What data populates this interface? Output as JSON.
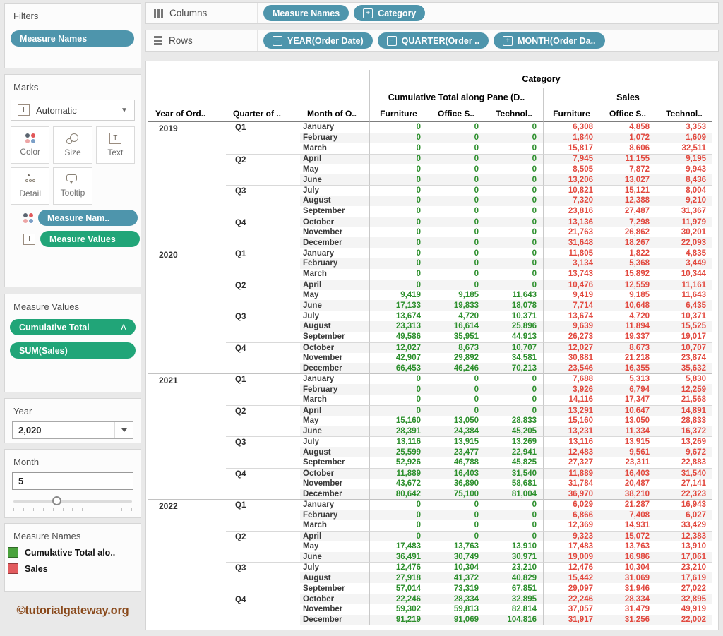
{
  "colors": {
    "pill_blue": "#4e95ac",
    "pill_green": "#21a578",
    "value_green": "#2c8f2c",
    "value_red": "#e2493f",
    "legend_green": "#4aa23c",
    "legend_red": "#e25b5e",
    "watermark_brown": "#8a4a1c"
  },
  "shelves": {
    "columns": {
      "label": "Columns",
      "pills": [
        {
          "label": "Measure Names",
          "prefix": ""
        },
        {
          "label": "Category",
          "prefix": "+"
        }
      ]
    },
    "rows": {
      "label": "Rows",
      "pills": [
        {
          "label": "YEAR(Order Date)",
          "prefix": "−"
        },
        {
          "label": "QUARTER(Order ..",
          "prefix": "−"
        },
        {
          "label": "MONTH(Order Da..",
          "prefix": "+"
        }
      ]
    }
  },
  "sidebar": {
    "filters": {
      "title": "Filters",
      "pill": "Measure Names"
    },
    "marks": {
      "title": "Marks",
      "mark_type": "Automatic",
      "buttons": {
        "color": "Color",
        "size": "Size",
        "text": "Text",
        "detail": "Detail",
        "tooltip": "Tooltip"
      },
      "pills": [
        {
          "label": "Measure Nam.."
        },
        {
          "label": "Measure Values"
        }
      ]
    },
    "measure_values": {
      "title": "Measure Values",
      "pills": [
        {
          "label": "Cumulative Total",
          "badge": "Δ"
        },
        {
          "label": "SUM(Sales)",
          "badge": ""
        }
      ]
    },
    "year_filter": {
      "title": "Year",
      "value": "2,020"
    },
    "month_filter": {
      "title": "Month",
      "value": "5"
    },
    "legend": {
      "title": "Measure Names",
      "items": [
        {
          "label": "Cumulative Total alo.."
        },
        {
          "label": "Sales"
        }
      ]
    },
    "watermark": "©tutorialgateway.org"
  },
  "table": {
    "row_headers": [
      "Year of Ord..",
      "Quarter of ..",
      "Month of O.."
    ],
    "category_header": "Category",
    "groups": [
      {
        "label": "Cumulative Total along Pane (D..",
        "columns": [
          "Furniture",
          "Office S..",
          "Technol.."
        ]
      },
      {
        "label": "Sales",
        "columns": [
          "Furniture",
          "Office S..",
          "Technol.."
        ]
      }
    ],
    "years": [
      {
        "year": "2019",
        "quarters": [
          {
            "label": "Q1",
            "months": [
              {
                "month": "January",
                "cumulative": [
                  "0",
                  "0",
                  "0"
                ],
                "sales": [
                  "6,308",
                  "4,858",
                  "3,353"
                ]
              },
              {
                "month": "February",
                "cumulative": [
                  "0",
                  "0",
                  "0"
                ],
                "sales": [
                  "1,840",
                  "1,072",
                  "1,609"
                ]
              },
              {
                "month": "March",
                "cumulative": [
                  "0",
                  "0",
                  "0"
                ],
                "sales": [
                  "15,817",
                  "8,606",
                  "32,511"
                ]
              }
            ]
          },
          {
            "label": "Q2",
            "months": [
              {
                "month": "April",
                "cumulative": [
                  "0",
                  "0",
                  "0"
                ],
                "sales": [
                  "7,945",
                  "11,155",
                  "9,195"
                ]
              },
              {
                "month": "May",
                "cumulative": [
                  "0",
                  "0",
                  "0"
                ],
                "sales": [
                  "8,505",
                  "7,872",
                  "9,943"
                ]
              },
              {
                "month": "June",
                "cumulative": [
                  "0",
                  "0",
                  "0"
                ],
                "sales": [
                  "13,206",
                  "13,027",
                  "8,436"
                ]
              }
            ]
          },
          {
            "label": "Q3",
            "months": [
              {
                "month": "July",
                "cumulative": [
                  "0",
                  "0",
                  "0"
                ],
                "sales": [
                  "10,821",
                  "15,121",
                  "8,004"
                ]
              },
              {
                "month": "August",
                "cumulative": [
                  "0",
                  "0",
                  "0"
                ],
                "sales": [
                  "7,320",
                  "12,388",
                  "9,210"
                ]
              },
              {
                "month": "September",
                "cumulative": [
                  "0",
                  "0",
                  "0"
                ],
                "sales": [
                  "23,816",
                  "27,487",
                  "31,367"
                ]
              }
            ]
          },
          {
            "label": "Q4",
            "months": [
              {
                "month": "October",
                "cumulative": [
                  "0",
                  "0",
                  "0"
                ],
                "sales": [
                  "13,136",
                  "7,298",
                  "11,979"
                ]
              },
              {
                "month": "November",
                "cumulative": [
                  "0",
                  "0",
                  "0"
                ],
                "sales": [
                  "21,763",
                  "26,862",
                  "30,201"
                ]
              },
              {
                "month": "December",
                "cumulative": [
                  "0",
                  "0",
                  "0"
                ],
                "sales": [
                  "31,648",
                  "18,267",
                  "22,093"
                ]
              }
            ]
          }
        ]
      },
      {
        "year": "2020",
        "quarters": [
          {
            "label": "Q1",
            "months": [
              {
                "month": "January",
                "cumulative": [
                  "0",
                  "0",
                  "0"
                ],
                "sales": [
                  "11,805",
                  "1,822",
                  "4,835"
                ]
              },
              {
                "month": "February",
                "cumulative": [
                  "0",
                  "0",
                  "0"
                ],
                "sales": [
                  "3,134",
                  "5,368",
                  "3,449"
                ]
              },
              {
                "month": "March",
                "cumulative": [
                  "0",
                  "0",
                  "0"
                ],
                "sales": [
                  "13,743",
                  "15,892",
                  "10,344"
                ]
              }
            ]
          },
          {
            "label": "Q2",
            "months": [
              {
                "month": "April",
                "cumulative": [
                  "0",
                  "0",
                  "0"
                ],
                "sales": [
                  "10,476",
                  "12,559",
                  "11,161"
                ]
              },
              {
                "month": "May",
                "cumulative": [
                  "9,419",
                  "9,185",
                  "11,643"
                ],
                "sales": [
                  "9,419",
                  "9,185",
                  "11,643"
                ]
              },
              {
                "month": "June",
                "cumulative": [
                  "17,133",
                  "19,833",
                  "18,078"
                ],
                "sales": [
                  "7,714",
                  "10,648",
                  "6,435"
                ]
              }
            ]
          },
          {
            "label": "Q3",
            "months": [
              {
                "month": "July",
                "cumulative": [
                  "13,674",
                  "4,720",
                  "10,371"
                ],
                "sales": [
                  "13,674",
                  "4,720",
                  "10,371"
                ]
              },
              {
                "month": "August",
                "cumulative": [
                  "23,313",
                  "16,614",
                  "25,896"
                ],
                "sales": [
                  "9,639",
                  "11,894",
                  "15,525"
                ]
              },
              {
                "month": "September",
                "cumulative": [
                  "49,586",
                  "35,951",
                  "44,913"
                ],
                "sales": [
                  "26,273",
                  "19,337",
                  "19,017"
                ]
              }
            ]
          },
          {
            "label": "Q4",
            "months": [
              {
                "month": "October",
                "cumulative": [
                  "12,027",
                  "8,673",
                  "10,707"
                ],
                "sales": [
                  "12,027",
                  "8,673",
                  "10,707"
                ]
              },
              {
                "month": "November",
                "cumulative": [
                  "42,907",
                  "29,892",
                  "34,581"
                ],
                "sales": [
                  "30,881",
                  "21,218",
                  "23,874"
                ]
              },
              {
                "month": "December",
                "cumulative": [
                  "66,453",
                  "46,246",
                  "70,213"
                ],
                "sales": [
                  "23,546",
                  "16,355",
                  "35,632"
                ]
              }
            ]
          }
        ]
      },
      {
        "year": "2021",
        "quarters": [
          {
            "label": "Q1",
            "months": [
              {
                "month": "January",
                "cumulative": [
                  "0",
                  "0",
                  "0"
                ],
                "sales": [
                  "7,688",
                  "5,313",
                  "5,830"
                ]
              },
              {
                "month": "February",
                "cumulative": [
                  "0",
                  "0",
                  "0"
                ],
                "sales": [
                  "3,926",
                  "6,794",
                  "12,259"
                ]
              },
              {
                "month": "March",
                "cumulative": [
                  "0",
                  "0",
                  "0"
                ],
                "sales": [
                  "14,116",
                  "17,347",
                  "21,568"
                ]
              }
            ]
          },
          {
            "label": "Q2",
            "months": [
              {
                "month": "April",
                "cumulative": [
                  "0",
                  "0",
                  "0"
                ],
                "sales": [
                  "13,291",
                  "10,647",
                  "14,891"
                ]
              },
              {
                "month": "May",
                "cumulative": [
                  "15,160",
                  "13,050",
                  "28,833"
                ],
                "sales": [
                  "15,160",
                  "13,050",
                  "28,833"
                ]
              },
              {
                "month": "June",
                "cumulative": [
                  "28,391",
                  "24,384",
                  "45,205"
                ],
                "sales": [
                  "13,231",
                  "11,334",
                  "16,372"
                ]
              }
            ]
          },
          {
            "label": "Q3",
            "months": [
              {
                "month": "July",
                "cumulative": [
                  "13,116",
                  "13,915",
                  "13,269"
                ],
                "sales": [
                  "13,116",
                  "13,915",
                  "13,269"
                ]
              },
              {
                "month": "August",
                "cumulative": [
                  "25,599",
                  "23,477",
                  "22,941"
                ],
                "sales": [
                  "12,483",
                  "9,561",
                  "9,672"
                ]
              },
              {
                "month": "September",
                "cumulative": [
                  "52,926",
                  "46,788",
                  "45,825"
                ],
                "sales": [
                  "27,327",
                  "23,311",
                  "22,883"
                ]
              }
            ]
          },
          {
            "label": "Q4",
            "months": [
              {
                "month": "October",
                "cumulative": [
                  "11,889",
                  "16,403",
                  "31,540"
                ],
                "sales": [
                  "11,889",
                  "16,403",
                  "31,540"
                ]
              },
              {
                "month": "November",
                "cumulative": [
                  "43,672",
                  "36,890",
                  "58,681"
                ],
                "sales": [
                  "31,784",
                  "20,487",
                  "27,141"
                ]
              },
              {
                "month": "December",
                "cumulative": [
                  "80,642",
                  "75,100",
                  "81,004"
                ],
                "sales": [
                  "36,970",
                  "38,210",
                  "22,323"
                ]
              }
            ]
          }
        ]
      },
      {
        "year": "2022",
        "quarters": [
          {
            "label": "Q1",
            "months": [
              {
                "month": "January",
                "cumulative": [
                  "0",
                  "0",
                  "0"
                ],
                "sales": [
                  "6,029",
                  "21,287",
                  "16,943"
                ]
              },
              {
                "month": "February",
                "cumulative": [
                  "0",
                  "0",
                  "0"
                ],
                "sales": [
                  "6,866",
                  "7,408",
                  "6,027"
                ]
              },
              {
                "month": "March",
                "cumulative": [
                  "0",
                  "0",
                  "0"
                ],
                "sales": [
                  "12,369",
                  "14,931",
                  "33,429"
                ]
              }
            ]
          },
          {
            "label": "Q2",
            "months": [
              {
                "month": "April",
                "cumulative": [
                  "0",
                  "0",
                  "0"
                ],
                "sales": [
                  "9,323",
                  "15,072",
                  "12,383"
                ]
              },
              {
                "month": "May",
                "cumulative": [
                  "17,483",
                  "13,763",
                  "13,910"
                ],
                "sales": [
                  "17,483",
                  "13,763",
                  "13,910"
                ]
              },
              {
                "month": "June",
                "cumulative": [
                  "36,491",
                  "30,749",
                  "30,971"
                ],
                "sales": [
                  "19,009",
                  "16,986",
                  "17,061"
                ]
              }
            ]
          },
          {
            "label": "Q3",
            "months": [
              {
                "month": "July",
                "cumulative": [
                  "12,476",
                  "10,304",
                  "23,210"
                ],
                "sales": [
                  "12,476",
                  "10,304",
                  "23,210"
                ]
              },
              {
                "month": "August",
                "cumulative": [
                  "27,918",
                  "41,372",
                  "40,829"
                ],
                "sales": [
                  "15,442",
                  "31,069",
                  "17,619"
                ]
              },
              {
                "month": "September",
                "cumulative": [
                  "57,014",
                  "73,319",
                  "67,851"
                ],
                "sales": [
                  "29,097",
                  "31,946",
                  "27,022"
                ]
              }
            ]
          },
          {
            "label": "Q4",
            "months": [
              {
                "month": "October",
                "cumulative": [
                  "22,246",
                  "28,334",
                  "32,895"
                ],
                "sales": [
                  "22,246",
                  "28,334",
                  "32,895"
                ]
              },
              {
                "month": "November",
                "cumulative": [
                  "59,302",
                  "59,813",
                  "82,814"
                ],
                "sales": [
                  "37,057",
                  "31,479",
                  "49,919"
                ]
              },
              {
                "month": "December",
                "cumulative": [
                  "91,219",
                  "91,069",
                  "104,816"
                ],
                "sales": [
                  "31,917",
                  "31,256",
                  "22,002"
                ]
              }
            ]
          }
        ]
      }
    ]
  }
}
